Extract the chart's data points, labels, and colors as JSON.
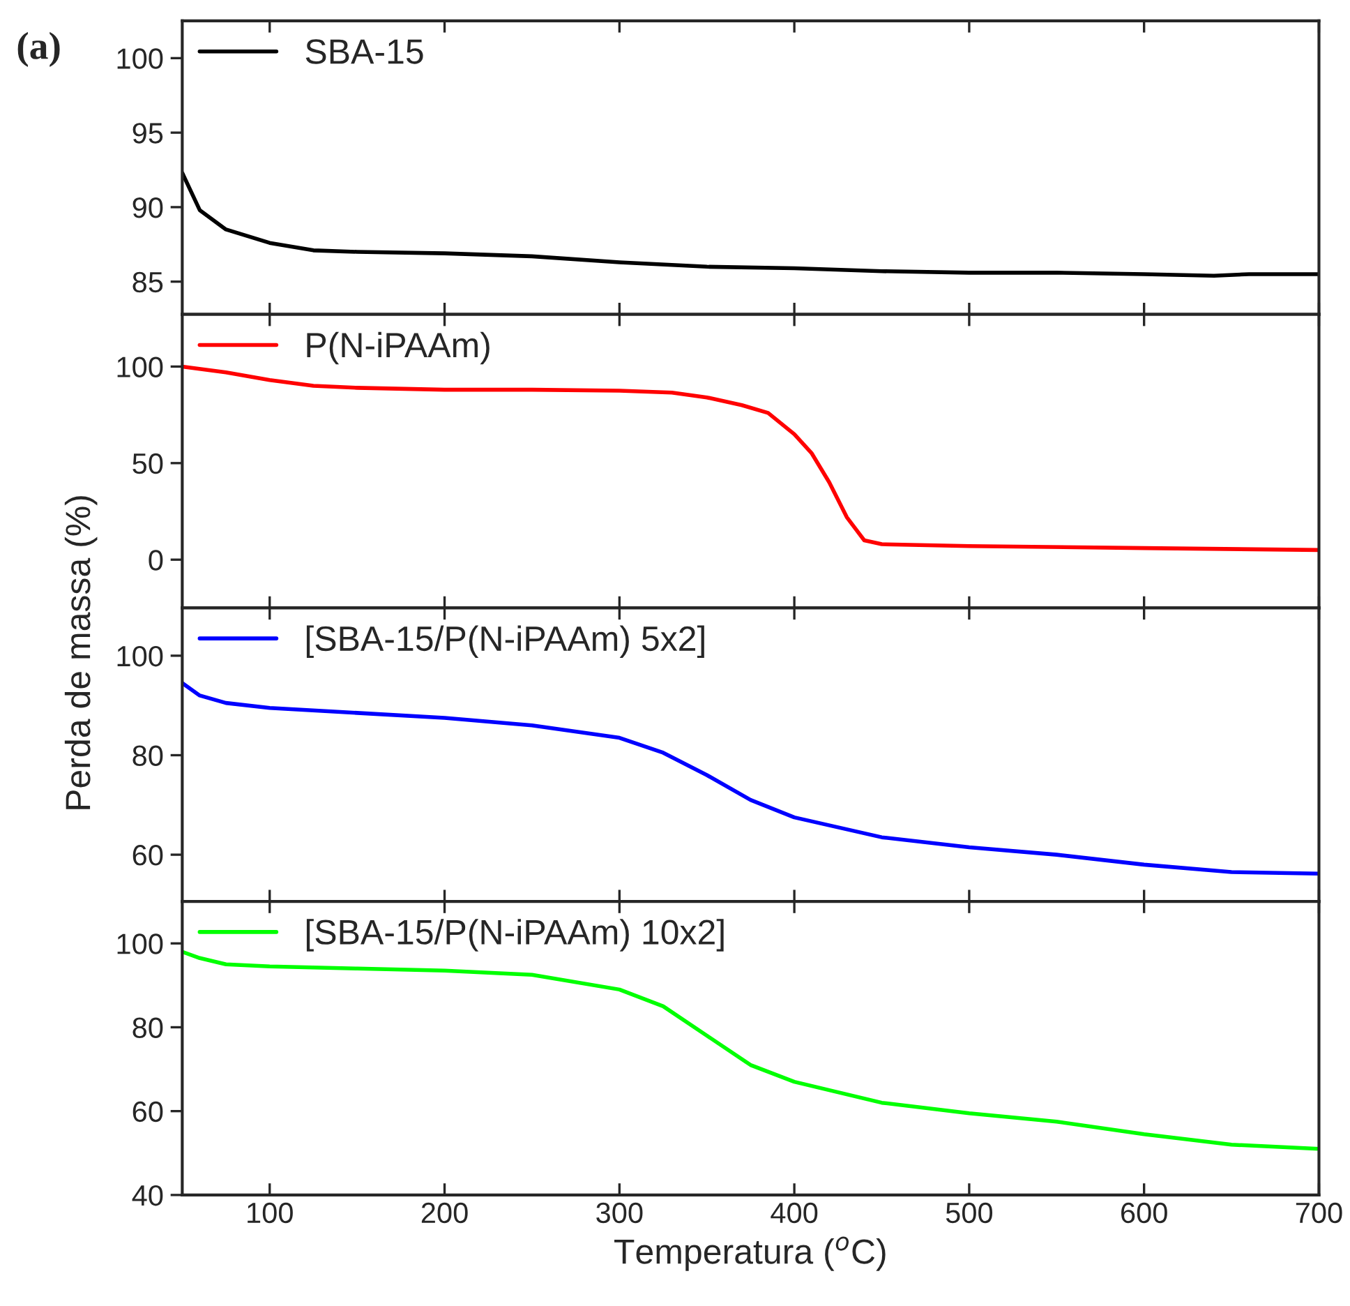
{
  "chart_data": [
    {
      "type": "line",
      "title": "(a)",
      "ylabel": "Perda de massa (%)",
      "xlim": [
        50,
        700
      ],
      "xticks": [
        100,
        200,
        300,
        400,
        500,
        600,
        700
      ],
      "ylim": [
        82.8,
        102.5
      ],
      "yticks": [
        85,
        90,
        95,
        100
      ],
      "tick_labels": "y",
      "legend": "top left",
      "grid": false,
      "series": [
        {
          "name": "SBA-15",
          "color": "#000000",
          "x": [
            50,
            60,
            75,
            100,
            125,
            150,
            200,
            250,
            300,
            350,
            400,
            450,
            500,
            550,
            600,
            640,
            660,
            700
          ],
          "values": [
            92.3,
            89.8,
            88.5,
            87.6,
            87.1,
            87.0,
            86.9,
            86.7,
            86.3,
            86.0,
            85.9,
            85.7,
            85.6,
            85.6,
            85.5,
            85.4,
            85.5,
            85.5
          ]
        }
      ]
    },
    {
      "type": "line",
      "xlim": [
        50,
        700
      ],
      "xticks": [
        100,
        200,
        300,
        400,
        500,
        600,
        700
      ],
      "ylim": [
        -25,
        127
      ],
      "yticks": [
        0,
        50,
        100
      ],
      "tick_labels": "y",
      "legend": "top left",
      "grid": false,
      "series": [
        {
          "name": "P(N-iPAAm)",
          "color": "#ff0000",
          "x": [
            50,
            75,
            100,
            125,
            150,
            200,
            250,
            300,
            330,
            350,
            370,
            385,
            400,
            410,
            420,
            430,
            440,
            450,
            500,
            600,
            700
          ],
          "values": [
            100,
            97,
            93,
            90,
            89,
            88,
            88,
            87.5,
            86.5,
            84,
            80,
            76,
            65,
            55,
            40,
            22,
            10,
            8,
            7,
            6,
            5
          ]
        }
      ]
    },
    {
      "type": "line",
      "xlim": [
        50,
        700
      ],
      "xticks": [
        100,
        200,
        300,
        400,
        500,
        600,
        700
      ],
      "ylim": [
        50.6,
        109.6
      ],
      "yticks": [
        60,
        80,
        100
      ],
      "tick_labels": "y",
      "legend": "top left",
      "grid": false,
      "series": [
        {
          "name": "[SBA-15/P(N-iPAAm) 5x2]",
          "color": "#0000ff",
          "x": [
            50,
            60,
            75,
            100,
            150,
            200,
            250,
            300,
            325,
            350,
            375,
            400,
            450,
            500,
            550,
            600,
            650,
            700
          ],
          "values": [
            94.5,
            92,
            90.5,
            89.5,
            88.5,
            87.5,
            86,
            83.5,
            80.5,
            76,
            71,
            67.5,
            63.5,
            61.5,
            60,
            58,
            56.5,
            56.2
          ]
        }
      ]
    },
    {
      "type": "line",
      "xlabel": "Temperatura ($^{o}$C)",
      "xlim": [
        50,
        700
      ],
      "xticks": [
        100,
        200,
        300,
        400,
        500,
        600,
        700
      ],
      "ylim": [
        40,
        110
      ],
      "yticks": [
        40,
        60,
        80,
        100
      ],
      "legend": "top left",
      "grid": false,
      "series": [
        {
          "name": "[SBA-15/P(N-iPAAm) 10x2]",
          "color": "#00ff00",
          "x": [
            50,
            60,
            75,
            100,
            150,
            200,
            250,
            300,
            325,
            350,
            375,
            400,
            450,
            500,
            550,
            600,
            650,
            700
          ],
          "values": [
            98,
            96.5,
            95,
            94.5,
            94,
            93.5,
            92.5,
            89,
            85,
            78,
            71,
            67,
            62,
            59.5,
            57.5,
            54.5,
            52,
            51
          ]
        }
      ]
    }
  ]
}
